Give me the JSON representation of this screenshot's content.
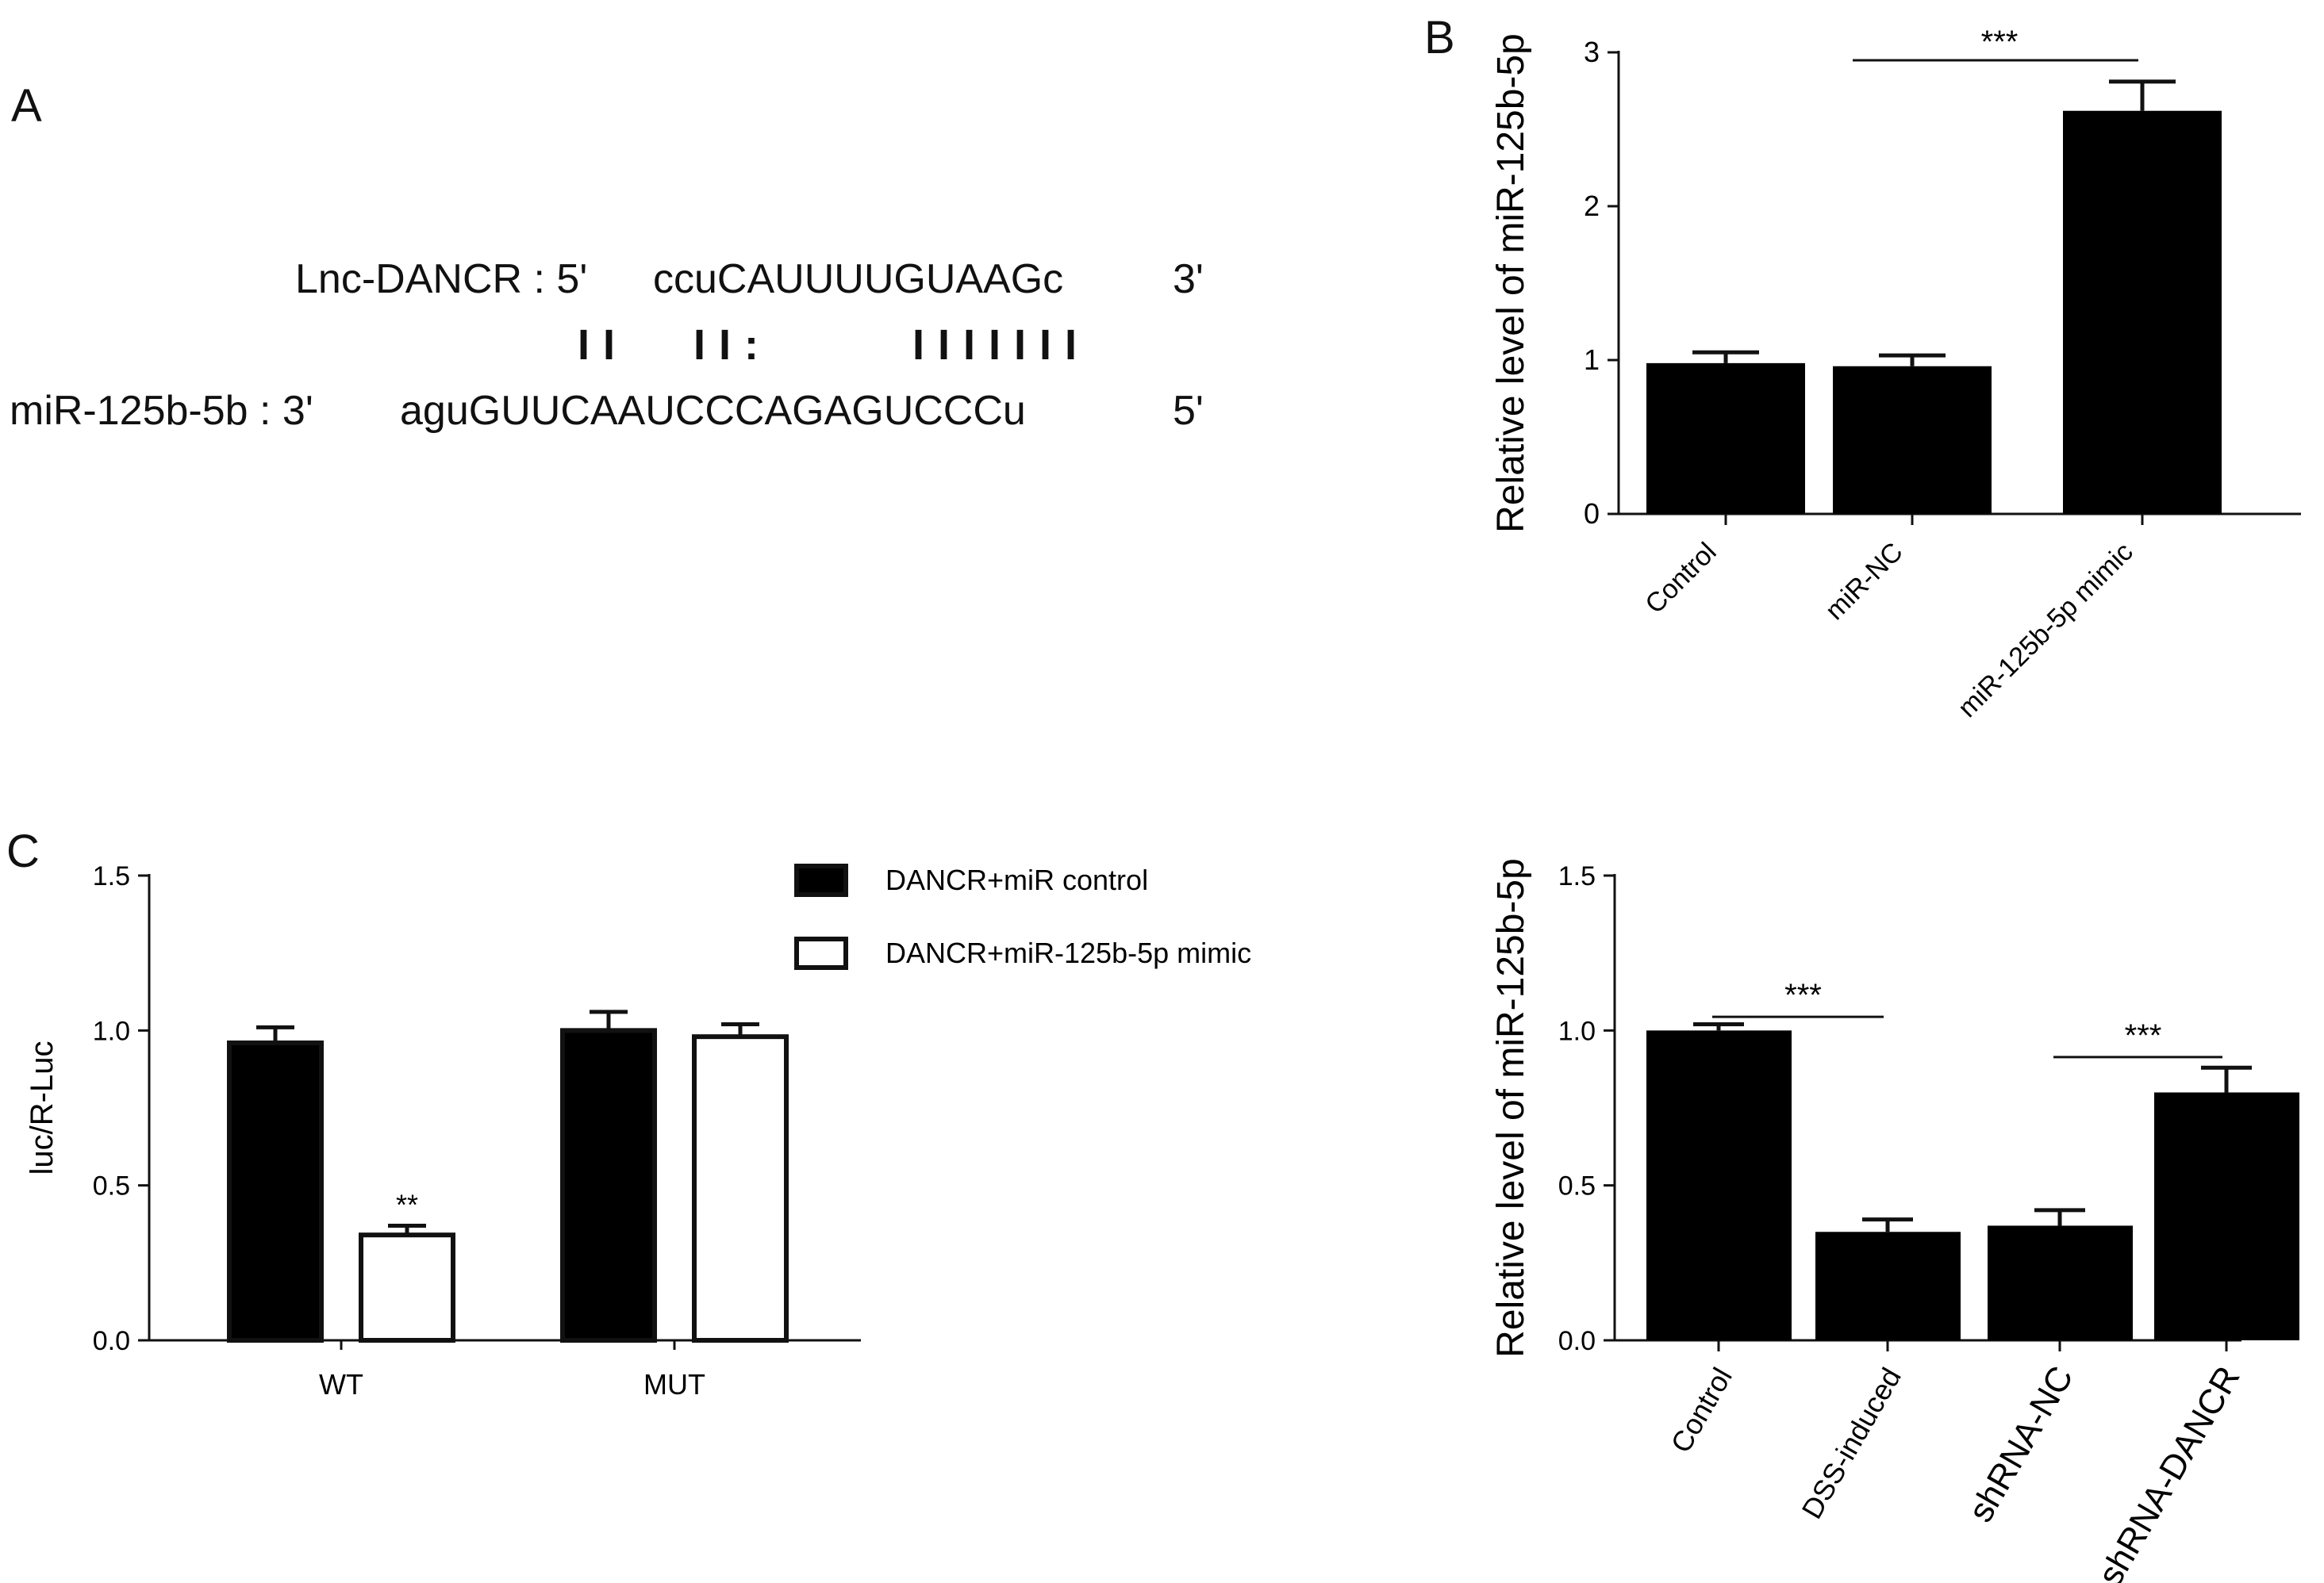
{
  "panels": {
    "a": "A",
    "b": "B",
    "c": "C"
  },
  "sequence": {
    "lnc_label": "Lnc-DANCR : 5'",
    "lnc_seq": "ccuCAUUUUGUAAGc",
    "lnc_end": "3'",
    "pair_group1": "I I",
    "pair_group2": "I I :",
    "pair_group3": "I I I I I I I",
    "mir_label": "miR-125b-5b : 3'",
    "mir_seq": "aguGUUCAAUCCCAGAGUCCCu",
    "mir_end": "5'"
  },
  "chart_data": [
    {
      "id": "B",
      "type": "bar",
      "ylabel": "Relative level of miR-125b-5p",
      "ylim": [
        0,
        3
      ],
      "yticks": [
        "0",
        "1",
        "2",
        "3"
      ],
      "categories": [
        "Control",
        "miR-NC",
        "miR-125b-5p mimic"
      ],
      "values": [
        0.98,
        0.96,
        2.62
      ],
      "errors": [
        0.07,
        0.07,
        0.19
      ],
      "bar_color": "#000000",
      "significance": [
        {
          "from": 1,
          "to": 2,
          "label": "***",
          "y": 3.0
        }
      ]
    },
    {
      "id": "C",
      "type": "bar",
      "ylabel": "luc/R-Luc",
      "ylim": [
        0,
        1.5
      ],
      "yticks": [
        "0.0",
        "0.5",
        "1.0",
        "1.5"
      ],
      "categories": [
        "WT",
        "MUT"
      ],
      "series": [
        {
          "name": "DANCR+miR control",
          "values": [
            0.96,
            1.0
          ],
          "errors": [
            0.05,
            0.06
          ],
          "fill": "#000000"
        },
        {
          "name": "DANCR+miR-125b-5p mimic",
          "values": [
            0.34,
            0.98
          ],
          "errors": [
            0.03,
            0.04
          ],
          "fill": "#ffffff"
        }
      ],
      "annotations": [
        {
          "category": 0,
          "series": 1,
          "label": "**"
        }
      ],
      "legend": "top-right"
    },
    {
      "id": "D",
      "type": "bar",
      "ylabel": "Relative level of miR-125b-5p",
      "ylim": [
        0,
        1.5
      ],
      "yticks": [
        "0.0",
        "0.5",
        "1.0",
        "1.5"
      ],
      "categories": [
        "Control",
        "DSS-induced",
        "shRNA-NC",
        "shRNA-DANCR"
      ],
      "values": [
        1.0,
        0.35,
        0.37,
        0.8
      ],
      "errors": [
        0.02,
        0.04,
        0.05,
        0.08
      ],
      "bar_color": "#000000",
      "significance": [
        {
          "from": 0,
          "to": 1,
          "label": "***",
          "y": 1.08
        },
        {
          "from": 2,
          "to": 3,
          "label": "***",
          "y": 0.95
        }
      ]
    }
  ]
}
